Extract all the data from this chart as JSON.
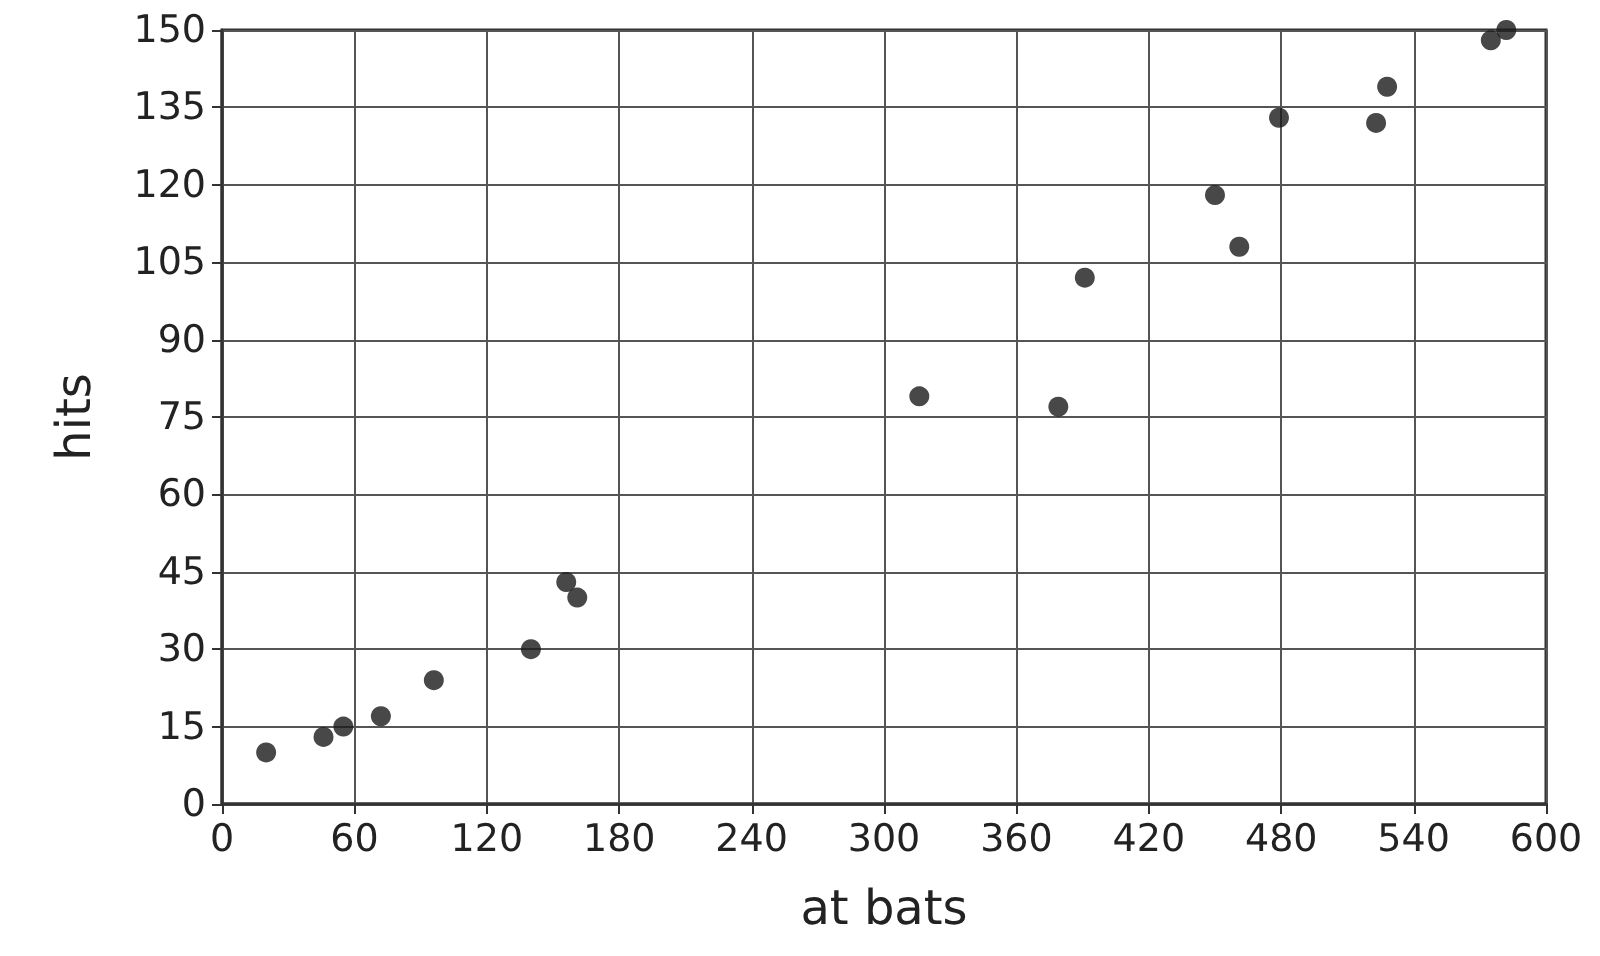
{
  "chart_data": {
    "type": "scatter",
    "xlabel": "at bats",
    "ylabel": "hits",
    "x": [
      20,
      46,
      55,
      72,
      96,
      140,
      156,
      161,
      316,
      379,
      391,
      450,
      461,
      479,
      523,
      528,
      575,
      582
    ],
    "series": [
      {
        "color": "#1a1a1a",
        "values": [
          10,
          13,
          15,
          17,
          24,
          30,
          43,
          40,
          79,
          77,
          102,
          118,
          108,
          133,
          132,
          139,
          148,
          150
        ]
      }
    ],
    "xlim": [
      0,
      600
    ],
    "xticks": [
      0,
      60,
      120,
      180,
      240,
      300,
      360,
      420,
      480,
      540,
      600
    ],
    "ylim": [
      0,
      150
    ],
    "yticks": [
      0,
      15,
      30,
      45,
      60,
      75,
      90,
      105,
      120,
      135,
      150
    ],
    "grid": true,
    "marker": "circle"
  }
}
